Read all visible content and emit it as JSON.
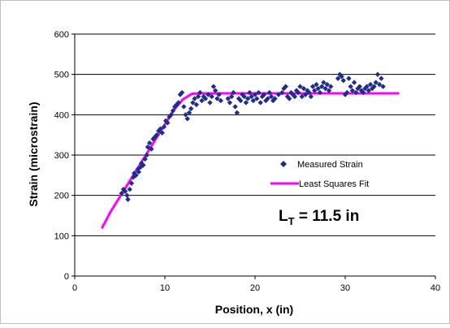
{
  "chart_data": {
    "type": "scatter",
    "xlabel": "Position, x (in)",
    "ylabel": "Strain (microstrain)",
    "xlim": [
      0,
      40
    ],
    "ylim": [
      0,
      600
    ],
    "x_ticks": [
      0,
      10,
      20,
      30,
      40
    ],
    "y_ticks": [
      0,
      100,
      200,
      300,
      400,
      500,
      600
    ],
    "grid": "horizontal",
    "legend_position": "right",
    "annotation": {
      "main": "L",
      "subscript": "T",
      "rest": " = 11.5 in"
    },
    "colors": {
      "measured": "#1f2d8a",
      "fit": "#ff00ff",
      "grid": "#000000"
    },
    "series": [
      {
        "name": "Measured Strain",
        "kind": "scatter",
        "marker": "diamond",
        "points": [
          [
            5.2,
            205
          ],
          [
            5.4,
            215
          ],
          [
            5.6,
            210
          ],
          [
            5.8,
            200
          ],
          [
            5.9,
            190
          ],
          [
            6.1,
            215
          ],
          [
            6.3,
            230
          ],
          [
            6.5,
            245
          ],
          [
            6.6,
            255
          ],
          [
            6.8,
            250
          ],
          [
            7.0,
            265
          ],
          [
            7.1,
            258
          ],
          [
            7.3,
            270
          ],
          [
            7.4,
            280
          ],
          [
            7.6,
            275
          ],
          [
            7.8,
            290
          ],
          [
            8.0,
            300
          ],
          [
            8.1,
            320
          ],
          [
            8.3,
            330
          ],
          [
            8.5,
            315
          ],
          [
            8.7,
            340
          ],
          [
            8.9,
            345
          ],
          [
            9.1,
            350
          ],
          [
            9.3,
            360
          ],
          [
            9.5,
            365
          ],
          [
            9.7,
            355
          ],
          [
            9.9,
            370
          ],
          [
            10.1,
            385
          ],
          [
            10.3,
            380
          ],
          [
            10.5,
            395
          ],
          [
            10.7,
            400
          ],
          [
            10.9,
            410
          ],
          [
            11.1,
            420
          ],
          [
            11.3,
            425
          ],
          [
            11.5,
            430
          ],
          [
            11.7,
            450
          ],
          [
            11.9,
            455
          ],
          [
            12.1,
            420
          ],
          [
            12.3,
            400
          ],
          [
            12.5,
            390
          ],
          [
            12.7,
            405
          ],
          [
            12.9,
            415
          ],
          [
            13.1,
            430
          ],
          [
            13.3,
            440
          ],
          [
            13.5,
            425
          ],
          [
            13.7,
            445
          ],
          [
            13.9,
            455
          ],
          [
            14.1,
            435
          ],
          [
            14.3,
            445
          ],
          [
            14.5,
            440
          ],
          [
            14.8,
            450
          ],
          [
            15.0,
            430
          ],
          [
            15.2,
            445
          ],
          [
            15.4,
            470
          ],
          [
            15.6,
            460
          ],
          [
            15.8,
            440
          ],
          [
            16.0,
            450
          ],
          [
            16.2,
            435
          ],
          [
            17.0,
            440
          ],
          [
            17.2,
            430
          ],
          [
            17.4,
            445
          ],
          [
            17.6,
            455
          ],
          [
            17.8,
            420
          ],
          [
            18.0,
            405
          ],
          [
            18.2,
            440
          ],
          [
            18.4,
            435
          ],
          [
            18.6,
            450
          ],
          [
            18.8,
            445
          ],
          [
            19.0,
            430
          ],
          [
            19.2,
            440
          ],
          [
            19.4,
            455
          ],
          [
            19.6,
            445
          ],
          [
            19.8,
            435
          ],
          [
            20.0,
            450
          ],
          [
            20.2,
            440
          ],
          [
            20.4,
            455
          ],
          [
            20.6,
            430
          ],
          [
            20.8,
            445
          ],
          [
            21.0,
            450
          ],
          [
            21.2,
            435
          ],
          [
            21.4,
            440
          ],
          [
            21.6,
            455
          ],
          [
            21.8,
            445
          ],
          [
            22.0,
            435
          ],
          [
            22.2,
            440
          ],
          [
            22.6,
            450
          ],
          [
            23.0,
            455
          ],
          [
            23.2,
            465
          ],
          [
            23.4,
            470
          ],
          [
            23.6,
            445
          ],
          [
            23.8,
            440
          ],
          [
            24.0,
            455
          ],
          [
            24.2,
            450
          ],
          [
            24.4,
            445
          ],
          [
            24.6,
            460
          ],
          [
            24.8,
            455
          ],
          [
            25.0,
            470
          ],
          [
            25.2,
            445
          ],
          [
            25.4,
            465
          ],
          [
            25.6,
            450
          ],
          [
            25.8,
            460
          ],
          [
            26.0,
            455
          ],
          [
            26.2,
            445
          ],
          [
            26.4,
            470
          ],
          [
            26.6,
            460
          ],
          [
            26.8,
            475
          ],
          [
            27.0,
            465
          ],
          [
            27.2,
            455
          ],
          [
            27.4,
            470
          ],
          [
            27.6,
            480
          ],
          [
            27.8,
            465
          ],
          [
            28.0,
            475
          ],
          [
            28.2,
            460
          ],
          [
            28.4,
            470
          ],
          [
            29.2,
            490
          ],
          [
            29.4,
            500
          ],
          [
            29.6,
            495
          ],
          [
            29.8,
            485
          ],
          [
            30.0,
            450
          ],
          [
            30.2,
            455
          ],
          [
            30.4,
            490
          ],
          [
            30.6,
            470
          ],
          [
            30.8,
            460
          ],
          [
            31.0,
            480
          ],
          [
            31.2,
            455
          ],
          [
            31.4,
            465
          ],
          [
            31.6,
            470
          ],
          [
            31.8,
            460
          ],
          [
            32.0,
            455
          ],
          [
            32.2,
            465
          ],
          [
            32.4,
            470
          ],
          [
            32.6,
            460
          ],
          [
            32.8,
            475
          ],
          [
            33.0,
            465
          ],
          [
            33.2,
            470
          ],
          [
            33.4,
            480
          ],
          [
            33.6,
            500
          ],
          [
            33.8,
            475
          ],
          [
            34.0,
            490
          ],
          [
            34.2,
            470
          ]
        ]
      },
      {
        "name": "Least Squares Fit",
        "kind": "line",
        "points": [
          [
            3,
            118
          ],
          [
            4,
            160
          ],
          [
            5,
            196
          ],
          [
            6,
            232
          ],
          [
            7,
            268
          ],
          [
            8,
            304
          ],
          [
            9,
            340
          ],
          [
            10,
            376
          ],
          [
            11,
            412
          ],
          [
            12,
            438
          ],
          [
            13,
            452
          ],
          [
            14,
            453
          ],
          [
            20,
            453
          ],
          [
            30,
            453
          ],
          [
            36,
            453
          ]
        ]
      }
    ]
  }
}
